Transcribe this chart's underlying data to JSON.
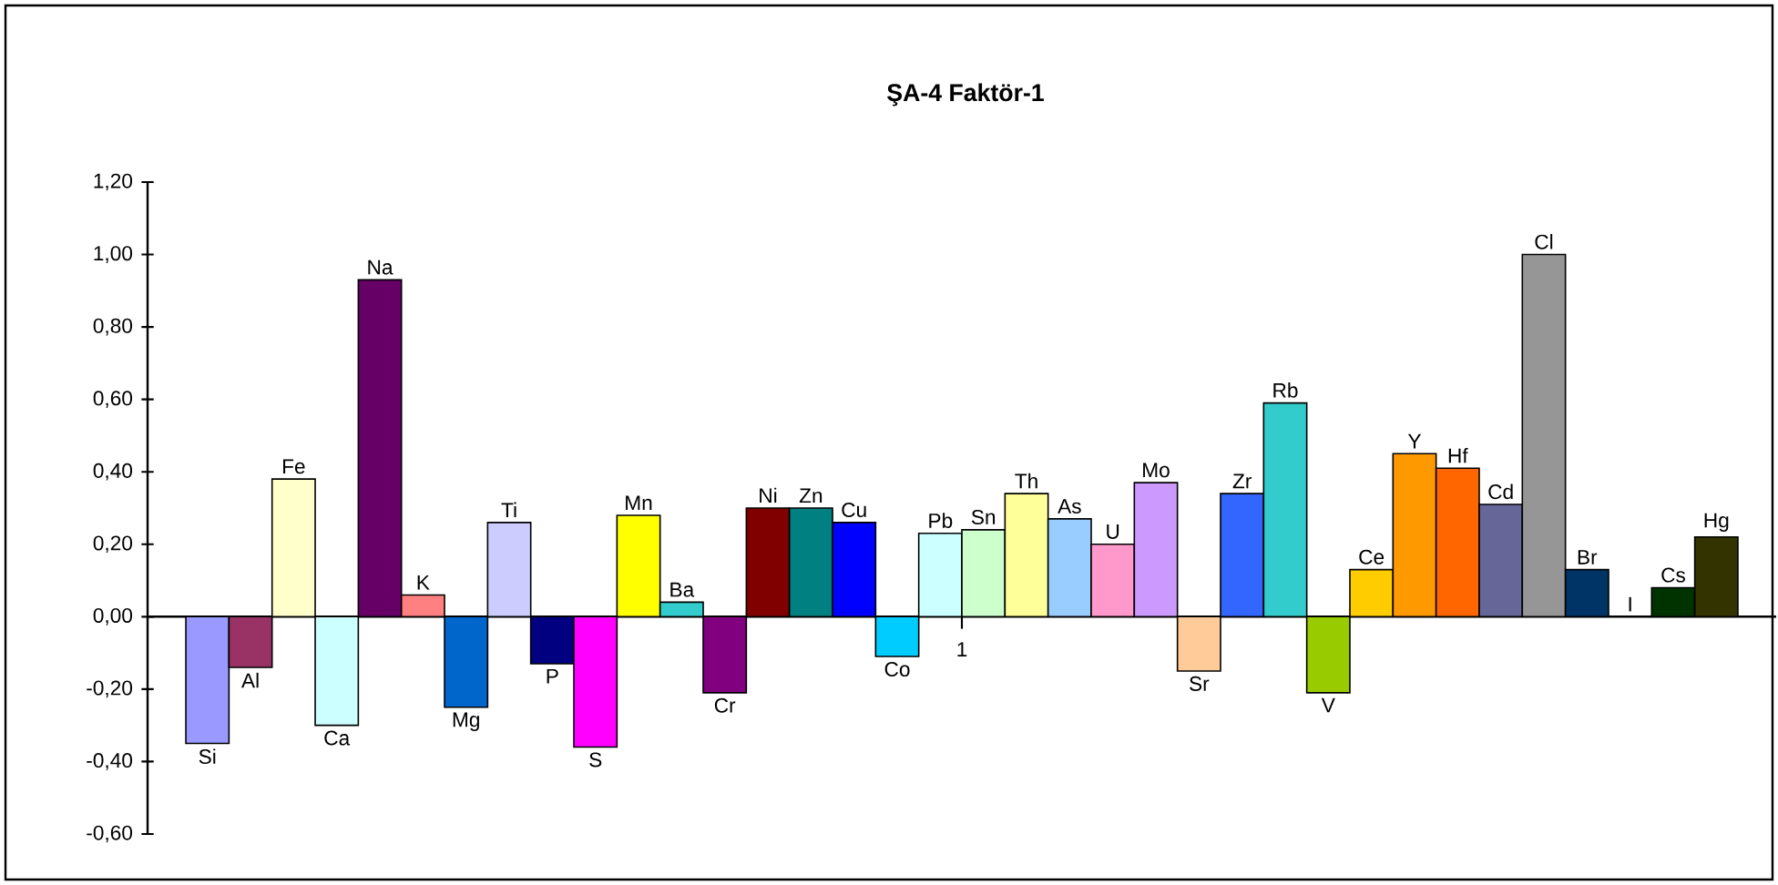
{
  "chart_data": {
    "type": "bar",
    "title": "ŞA-4 Faktör-1",
    "categories": [
      "1"
    ],
    "series": [
      {
        "name": "Si",
        "color": "#9999ff",
        "values": [
          -0.35
        ]
      },
      {
        "name": "Al",
        "color": "#993366",
        "values": [
          -0.14
        ]
      },
      {
        "name": "Fe",
        "color": "#ffffcc",
        "values": [
          0.38
        ]
      },
      {
        "name": "Ca",
        "color": "#ccffff",
        "values": [
          -0.3
        ]
      },
      {
        "name": "Na",
        "color": "#660066",
        "values": [
          0.93
        ]
      },
      {
        "name": "K",
        "color": "#ff8080",
        "values": [
          0.06
        ]
      },
      {
        "name": "Mg",
        "color": "#0066cc",
        "values": [
          -0.25
        ]
      },
      {
        "name": "Ti",
        "color": "#ccccff",
        "values": [
          0.26
        ]
      },
      {
        "name": "P",
        "color": "#000080",
        "values": [
          -0.13
        ]
      },
      {
        "name": "S",
        "color": "#ff00ff",
        "values": [
          -0.36
        ]
      },
      {
        "name": "Mn",
        "color": "#ffff00",
        "values": [
          0.28
        ]
      },
      {
        "name": "Ba",
        "color": "#33cccc",
        "values": [
          0.04
        ]
      },
      {
        "name": "Cr",
        "color": "#800080",
        "values": [
          -0.21
        ]
      },
      {
        "name": "Ni",
        "color": "#800000",
        "values": [
          0.3
        ]
      },
      {
        "name": "Zn",
        "color": "#008080",
        "values": [
          0.3
        ]
      },
      {
        "name": "Cu",
        "color": "#0000ff",
        "values": [
          0.26
        ]
      },
      {
        "name": "Co",
        "color": "#00ccff",
        "values": [
          -0.11
        ]
      },
      {
        "name": "Pb",
        "color": "#ccffff",
        "values": [
          0.23
        ]
      },
      {
        "name": "Sn",
        "color": "#ccffcc",
        "values": [
          0.24
        ]
      },
      {
        "name": "Th",
        "color": "#ffff99",
        "values": [
          0.34
        ]
      },
      {
        "name": "As",
        "color": "#99ccff",
        "values": [
          0.27
        ]
      },
      {
        "name": "U",
        "color": "#ff99cc",
        "values": [
          0.2
        ]
      },
      {
        "name": "Mo",
        "color": "#cc99ff",
        "values": [
          0.37
        ]
      },
      {
        "name": "Sr",
        "color": "#ffcc99",
        "values": [
          -0.15
        ]
      },
      {
        "name": "Zr",
        "color": "#3366ff",
        "values": [
          0.34
        ]
      },
      {
        "name": "Rb",
        "color": "#33cccc",
        "values": [
          0.59
        ]
      },
      {
        "name": "V",
        "color": "#99cc00",
        "values": [
          -0.21
        ]
      },
      {
        "name": "Ce",
        "color": "#ffcc00",
        "values": [
          0.13
        ]
      },
      {
        "name": "Y",
        "color": "#ff9900",
        "values": [
          0.45
        ]
      },
      {
        "name": "Hf",
        "color": "#ff6600",
        "values": [
          0.41
        ]
      },
      {
        "name": "Cd",
        "color": "#666699",
        "values": [
          0.31
        ]
      },
      {
        "name": "Cl",
        "color": "#969696",
        "values": [
          1.0
        ]
      },
      {
        "name": "Br",
        "color": "#003366",
        "values": [
          0.13
        ]
      },
      {
        "name": "I",
        "values": [
          0.0
        ]
      },
      {
        "name": "Cs",
        "color": "#003300",
        "values": [
          0.08
        ]
      },
      {
        "name": "Hg",
        "color": "#333300",
        "values": [
          0.22
        ]
      }
    ],
    "ylim": [
      -0.6,
      1.2
    ],
    "yticks": [
      {
        "value": -0.6,
        "label": "-0,60"
      },
      {
        "value": -0.4,
        "label": "-0,40"
      },
      {
        "value": -0.2,
        "label": "-0,20"
      },
      {
        "value": 0,
        "label": "0,00"
      },
      {
        "value": 0.2,
        "label": "0,20"
      },
      {
        "value": 0.4,
        "label": "0,40"
      },
      {
        "value": 0.6,
        "label": "0,60"
      },
      {
        "value": 0.8,
        "label": "0,80"
      },
      {
        "value": 1.0,
        "label": "1,00"
      },
      {
        "value": 1.2,
        "label": "1,20"
      }
    ]
  }
}
